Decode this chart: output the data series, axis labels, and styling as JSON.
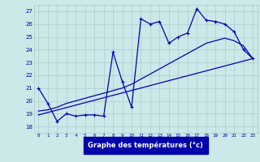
{
  "title": "Graphe des températures (°c)",
  "bg_color": "#cce8e8",
  "line_color": "#0000bb",
  "label_bg": "#0000aa",
  "xlim": [
    -0.5,
    23.5
  ],
  "ylim": [
    17.5,
    27.5
  ],
  "yticks": [
    18,
    19,
    20,
    21,
    22,
    23,
    24,
    25,
    26,
    27
  ],
  "xticks": [
    0,
    1,
    2,
    3,
    4,
    5,
    6,
    7,
    8,
    9,
    10,
    11,
    12,
    13,
    14,
    15,
    16,
    17,
    18,
    19,
    20,
    21,
    22,
    23
  ],
  "curve1_x": [
    0,
    1,
    2,
    3,
    4,
    5,
    6,
    7,
    8,
    9,
    10,
    11,
    12,
    13,
    14,
    15,
    16,
    17,
    18,
    19,
    20,
    21,
    22,
    23
  ],
  "curve1_y": [
    21.0,
    19.8,
    18.4,
    19.0,
    18.8,
    18.9,
    18.9,
    18.8,
    23.8,
    21.5,
    19.5,
    26.4,
    26.0,
    26.2,
    24.5,
    25.0,
    25.3,
    27.2,
    26.3,
    26.2,
    26.0,
    25.4,
    24.0,
    23.3
  ],
  "curve2_x": [
    0,
    23
  ],
  "curve2_y": [
    18.9,
    23.3
  ],
  "curve3_x": [
    0,
    1,
    2,
    3,
    4,
    5,
    6,
    7,
    8,
    9,
    10,
    11,
    12,
    13,
    14,
    15,
    16,
    17,
    18,
    19,
    20,
    21,
    22,
    23
  ],
  "curve3_y": [
    19.2,
    19.3,
    19.5,
    19.8,
    20.0,
    20.2,
    20.4,
    20.6,
    20.8,
    21.0,
    21.3,
    21.7,
    22.1,
    22.5,
    22.9,
    23.3,
    23.7,
    24.1,
    24.5,
    24.7,
    24.9,
    24.7,
    24.3,
    23.3
  ],
  "grid_color": "#aacccc",
  "tick_color": "#0000aa",
  "xlabel_fg": "#ffffff",
  "xlabel_bg": "#0000aa"
}
